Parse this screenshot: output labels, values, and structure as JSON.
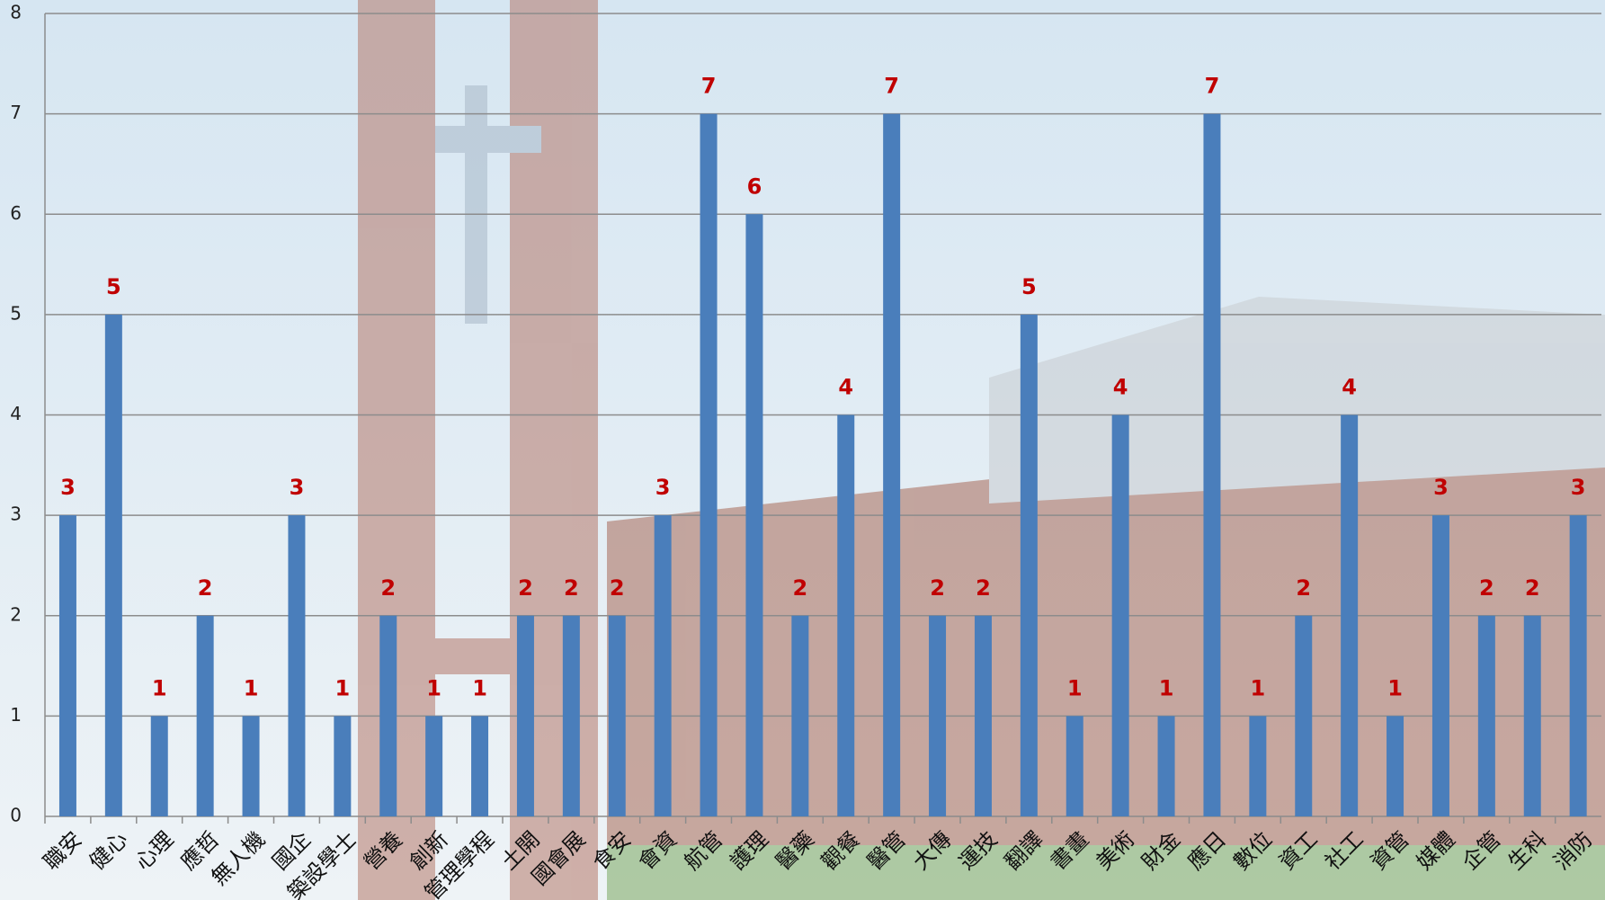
{
  "chart_data": {
    "type": "bar",
    "categories": [
      "職安",
      "健心",
      "心理",
      "應哲",
      "無人機",
      "國企",
      "築設學士",
      "營養",
      "創新",
      "管理學程",
      "土開",
      "國會展",
      "食安",
      "會資",
      "航管",
      "護理",
      "醫藥",
      "觀餐",
      "醫管",
      "大傳",
      "運技",
      "翻譯",
      "書畫",
      "美術",
      "財金",
      "應日",
      "數位",
      "資工",
      "社工",
      "資管",
      "媒體",
      "企管",
      "生科",
      "消防"
    ],
    "values": [
      3,
      5,
      1,
      2,
      1,
      3,
      1,
      2,
      1,
      1,
      2,
      2,
      2,
      3,
      7,
      6,
      2,
      4,
      7,
      2,
      2,
      5,
      1,
      4,
      1,
      7,
      1,
      2,
      4,
      1,
      3,
      2,
      2,
      3
    ],
    "color": "#4a7ebb",
    "label_color": "#c00000",
    "ylim": [
      0,
      8
    ],
    "yticks": [
      0,
      1,
      2,
      3,
      4,
      5,
      6,
      7,
      8
    ],
    "grid": true
  }
}
